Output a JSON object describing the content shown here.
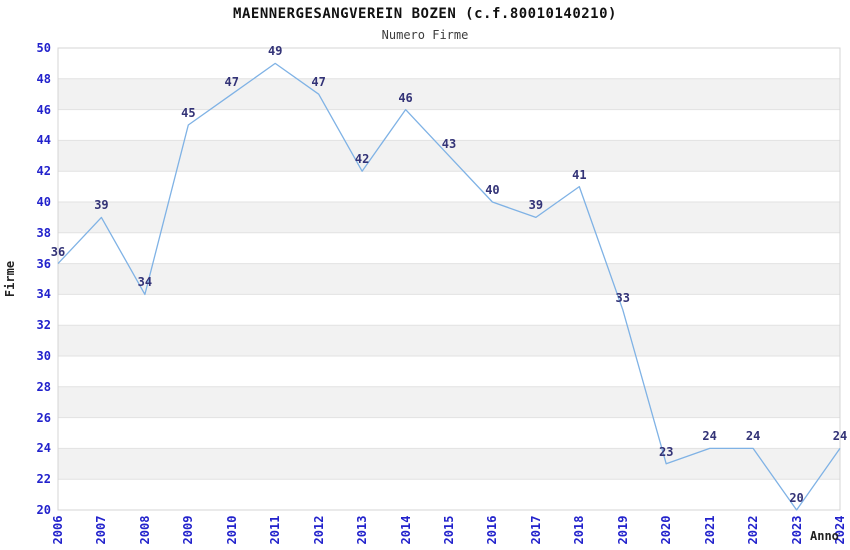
{
  "chart_data": {
    "type": "line",
    "title": "MAENNERGESANGVEREIN BOZEN (c.f.80010140210)",
    "subtitle": "Numero Firme",
    "xlabel": "Anno",
    "ylabel": "Firme",
    "x": [
      2006,
      2007,
      2008,
      2009,
      2010,
      2011,
      2012,
      2013,
      2014,
      2015,
      2016,
      2017,
      2018,
      2019,
      2020,
      2021,
      2022,
      2023,
      2024
    ],
    "series": [
      {
        "name": "Numero Firme",
        "values": [
          36,
          39,
          34,
          45,
          47,
          49,
          47,
          42,
          46,
          43,
          40,
          39,
          41,
          33,
          23,
          24,
          24,
          20,
          24
        ]
      }
    ],
    "ylim": [
      20,
      50
    ],
    "ytick_step": 2,
    "grid": "horizontal",
    "background_bands": "alternating 2-unit gray stripes",
    "legend": "none",
    "point_labels": true,
    "colors": {
      "line": "#7fb2e5",
      "tick_label": "#2222cc",
      "point_label": "#333377",
      "band": "#f2f2f2",
      "grid": "#e2e2e2",
      "border": "#d4d4d4",
      "title": "#111111",
      "subtitle": "#3c3c3c",
      "axis_title": "#222222",
      "background": "#ffffff"
    }
  }
}
